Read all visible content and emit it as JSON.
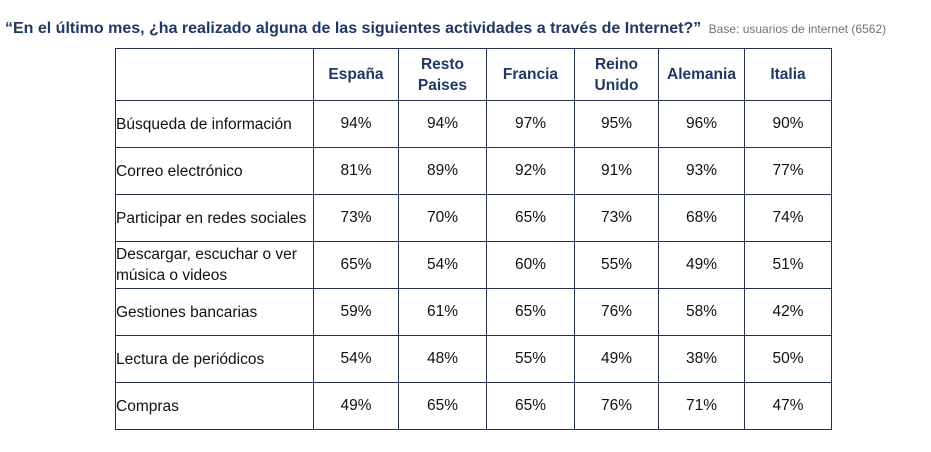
{
  "header": {
    "question": "“En el último mes, ¿ha realizado alguna de las siguientes actividades a través de Internet?”",
    "base": "Base: usuarios de internet (6562)"
  },
  "chart_data": {
    "type": "table",
    "columns": [
      "España",
      "Resto Paises",
      "Francia",
      "Reino Unido",
      "Alemania",
      "Italia"
    ],
    "rows": [
      {
        "label": "Búsqueda de información",
        "values": [
          "94%",
          "94%",
          "97%",
          "95%",
          "96%",
          "90%"
        ]
      },
      {
        "label": "Correo electrónico",
        "values": [
          "81%",
          "89%",
          "92%",
          "91%",
          "93%",
          "77%"
        ]
      },
      {
        "label": "Participar en redes sociales",
        "values": [
          "73%",
          "70%",
          "65%",
          "73%",
          "68%",
          "74%"
        ]
      },
      {
        "label": "Descargar, escuchar o ver música o videos",
        "values": [
          "65%",
          "54%",
          "60%",
          "55%",
          "49%",
          "51%"
        ]
      },
      {
        "label": "Gestiones bancarias",
        "values": [
          "59%",
          "61%",
          "65%",
          "76%",
          "58%",
          "42%"
        ]
      },
      {
        "label": "Lectura de periódicos",
        "values": [
          "54%",
          "48%",
          "55%",
          "49%",
          "38%",
          "50%"
        ]
      },
      {
        "label": "Compras",
        "values": [
          "49%",
          "65%",
          "65%",
          "76%",
          "71%",
          "47%"
        ]
      }
    ]
  }
}
